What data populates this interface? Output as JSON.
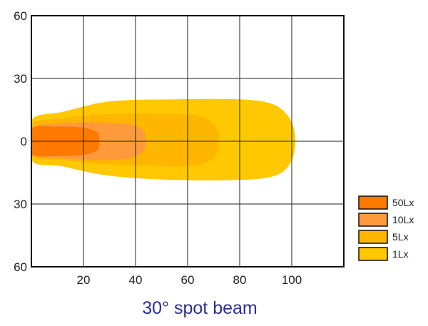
{
  "chart_data": {
    "type": "area",
    "title": "30° spot beam",
    "xlabel": "",
    "ylabel": "",
    "xlim": [
      0,
      120
    ],
    "ylim": [
      -60,
      60
    ],
    "x_ticks": [
      "20",
      "40",
      "60",
      "80",
      "100"
    ],
    "x_tick_values": [
      20,
      40,
      60,
      80,
      100
    ],
    "y_ticks": [
      "60",
      "30",
      "0",
      "30",
      "60"
    ],
    "y_tick_values": [
      60,
      30,
      0,
      -30,
      -60
    ],
    "grid": true,
    "legend_position": "right",
    "series": [
      {
        "name": "1Lx",
        "color": "#ffc800",
        "outline": [
          [
            0,
            10
          ],
          [
            12,
            14
          ],
          [
            30,
            19
          ],
          [
            55,
            20
          ],
          [
            80,
            20
          ],
          [
            92,
            18
          ],
          [
            98,
            13
          ],
          [
            101,
            5
          ],
          [
            101,
            -5
          ],
          [
            98,
            -13
          ],
          [
            92,
            -17
          ],
          [
            80,
            -18.5
          ],
          [
            55,
            -18.5
          ],
          [
            30,
            -16.5
          ],
          [
            12,
            -12
          ],
          [
            0,
            -9
          ]
        ]
      },
      {
        "name": "5Lx",
        "color": "#ffb600",
        "outline": [
          [
            0,
            8
          ],
          [
            12,
            11
          ],
          [
            30,
            13
          ],
          [
            55,
            13
          ],
          [
            65,
            12
          ],
          [
            70,
            8
          ],
          [
            72,
            3
          ],
          [
            72,
            -3
          ],
          [
            70,
            -8
          ],
          [
            65,
            -11
          ],
          [
            55,
            -12
          ],
          [
            30,
            -11
          ],
          [
            12,
            -9
          ],
          [
            0,
            -7
          ]
        ]
      },
      {
        "name": "10Lx",
        "color": "#ff9a3c",
        "outline": [
          [
            0,
            6
          ],
          [
            10,
            8.5
          ],
          [
            25,
            9
          ],
          [
            38,
            8
          ],
          [
            43,
            5
          ],
          [
            44,
            1
          ],
          [
            44,
            -1
          ],
          [
            43,
            -5
          ],
          [
            38,
            -8
          ],
          [
            25,
            -9
          ],
          [
            10,
            -8
          ],
          [
            0,
            -6
          ]
        ]
      },
      {
        "name": "50Lx",
        "color": "#ff7800",
        "outline": [
          [
            0,
            6
          ],
          [
            10,
            7
          ],
          [
            20,
            6.5
          ],
          [
            25,
            4.5
          ],
          [
            26,
            1.5
          ],
          [
            26,
            -1.5
          ],
          [
            25,
            -4.5
          ],
          [
            20,
            -6.5
          ],
          [
            10,
            -7
          ],
          [
            0,
            -6
          ]
        ]
      }
    ],
    "legend": [
      {
        "label": "50Lx",
        "color": "#ff7800"
      },
      {
        "label": "10Lx",
        "color": "#ff9a3c"
      },
      {
        "label": "5Lx",
        "color": "#ffb600"
      },
      {
        "label": "1Lx",
        "color": "#ffc800"
      }
    ]
  }
}
